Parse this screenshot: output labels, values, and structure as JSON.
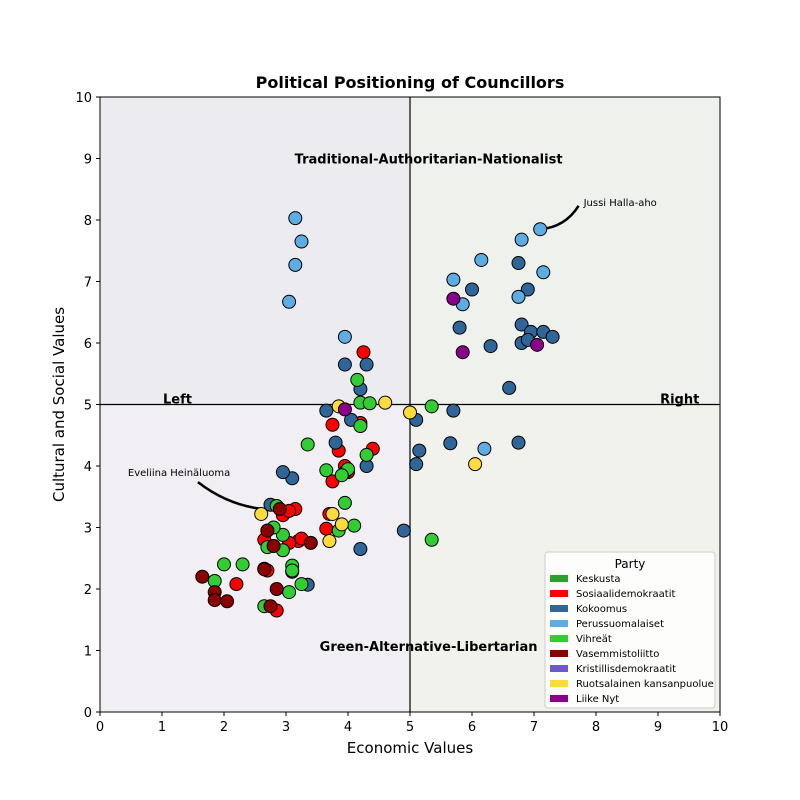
{
  "chart_data": {
    "type": "scatter",
    "title": "Political Positioning of Councillors",
    "xlabel": "Economic Values",
    "ylabel": "Cultural and Social Values",
    "xlim": [
      0,
      10
    ],
    "ylim": [
      0,
      10
    ],
    "xticks": [
      "0",
      "1",
      "2",
      "3",
      "4",
      "5",
      "6",
      "7",
      "8",
      "9",
      "10"
    ],
    "yticks": [
      "0",
      "1",
      "2",
      "3",
      "4",
      "5",
      "6",
      "7",
      "8",
      "9",
      "10"
    ],
    "grid": false,
    "legend_placement": "bottom-right",
    "legend_title": "Party",
    "quadrant_labels": {
      "top": "Traditional-Authoritarian-Nationalist",
      "bottom": "Green-Alternative-Libertarian",
      "left": "Left",
      "right": "Right"
    },
    "quadrant_colors": {
      "top_left": "#ececf0",
      "top_right": "#eff1ec",
      "bottom_left": "#f1eff4",
      "bottom_right": "#f2f2ec"
    },
    "annotations": [
      {
        "text": "Jussi Halla-aho",
        "point": [
          7.1,
          7.85
        ],
        "text_pos": [
          7.8,
          8.28
        ],
        "curve": -0.25
      },
      {
        "text": "Eveliina Heinäluoma",
        "point": [
          3.1,
          3.3
        ],
        "text_pos": [
          0.45,
          3.9
        ],
        "curve": 0.2
      }
    ],
    "series": [
      {
        "name": "Keskusta",
        "color": "#2ca02c",
        "x": [],
        "y": []
      },
      {
        "name": "Sosiaalidemokraatit",
        "color": "#ff0000",
        "x": [
          4.25,
          4.2,
          3.75,
          3.85,
          4.4,
          3.95,
          4.0,
          3.75,
          3.7,
          3.65,
          3.15,
          2.95,
          3.05,
          2.65,
          2.7,
          2.8,
          3.2,
          3.25,
          3.05,
          2.2,
          2.7,
          2.85
        ],
        "y": [
          5.85,
          4.7,
          4.67,
          4.25,
          4.28,
          4.0,
          3.9,
          3.75,
          3.22,
          2.98,
          3.3,
          3.2,
          3.27,
          2.8,
          2.95,
          2.7,
          2.78,
          2.82,
          2.75,
          2.08,
          2.3,
          1.65
        ]
      },
      {
        "name": "Kokoomus",
        "color": "#2f6699",
        "x": [
          3.95,
          4.3,
          4.2,
          3.65,
          3.8,
          4.05,
          3.95,
          4.3,
          3.1,
          2.95,
          2.75,
          4.2,
          5.1,
          5.15,
          5.1,
          5.65,
          5.7,
          6.0,
          5.8,
          6.75,
          6.8,
          6.9,
          6.8,
          6.95,
          7.15,
          7.3,
          6.9,
          6.3,
          6.6,
          6.75,
          4.9,
          3.35,
          3.1
        ],
        "y": [
          5.65,
          5.65,
          5.25,
          4.9,
          4.38,
          4.75,
          3.9,
          4.0,
          3.8,
          3.9,
          3.37,
          2.65,
          4.75,
          4.25,
          4.03,
          4.37,
          4.9,
          6.87,
          6.25,
          7.3,
          6.3,
          6.87,
          6.0,
          6.18,
          6.18,
          6.1,
          6.05,
          5.95,
          5.27,
          4.38,
          2.95,
          2.07,
          2.28
        ]
      },
      {
        "name": "Perussuomalaiset",
        "color": "#5dade2",
        "x": [
          3.15,
          3.25,
          3.15,
          3.05,
          3.95,
          5.7,
          6.15,
          5.85,
          6.8,
          7.1,
          7.15,
          6.75,
          6.2
        ],
        "y": [
          8.03,
          7.65,
          7.27,
          6.67,
          6.1,
          7.03,
          7.35,
          6.63,
          7.68,
          7.85,
          7.15,
          6.75,
          4.28
        ]
      },
      {
        "name": "Vihreät",
        "color": "#32cd32",
        "x": [
          4.15,
          4.2,
          4.35,
          4.2,
          3.35,
          4.3,
          3.65,
          4.0,
          3.9,
          3.95,
          4.1,
          3.85,
          5.35,
          5.35,
          2.85,
          2.95,
          2.8,
          2.7,
          2.95,
          2.0,
          2.3,
          1.85,
          3.1,
          3.1,
          3.25,
          3.05,
          2.65
        ],
        "y": [
          5.4,
          5.03,
          5.02,
          4.65,
          4.35,
          4.18,
          3.93,
          3.95,
          3.85,
          3.4,
          3.03,
          2.95,
          4.97,
          2.8,
          3.35,
          2.88,
          3.0,
          2.68,
          2.63,
          2.4,
          2.4,
          2.13,
          2.38,
          2.3,
          2.08,
          1.95,
          1.72
        ]
      },
      {
        "name": "Vasemmistoliitto",
        "color": "#8b0000",
        "x": [
          2.7,
          2.9,
          2.65,
          2.65,
          2.8,
          3.4,
          1.65,
          1.85,
          1.85,
          2.05,
          2.85,
          2.75
        ],
        "y": [
          2.95,
          3.3,
          2.33,
          2.32,
          2.7,
          2.75,
          2.2,
          1.95,
          1.82,
          1.8,
          2.0,
          1.72
        ]
      },
      {
        "name": "Kristillisdemokraatit",
        "color": "#6a5acd",
        "x": [],
        "y": []
      },
      {
        "name": "Ruotsalainen kansanpuolue",
        "color": "#fddc3c",
        "x": [
          3.85,
          4.6,
          5.0,
          6.05,
          2.6,
          3.75,
          3.9,
          3.7
        ],
        "y": [
          4.97,
          5.03,
          4.87,
          4.03,
          3.22,
          3.22,
          3.05,
          2.78
        ]
      },
      {
        "name": "Liike Nyt",
        "color": "#8b008b",
        "x": [
          5.7,
          5.85,
          7.05,
          3.95
        ],
        "y": [
          6.72,
          5.85,
          5.97,
          4.92
        ]
      }
    ]
  }
}
